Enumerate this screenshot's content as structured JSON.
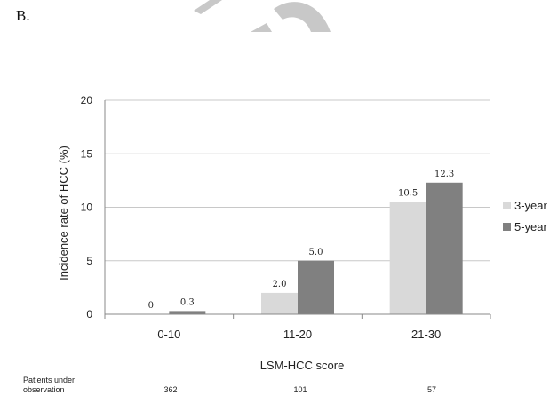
{
  "panel_label": "B.",
  "chart_data": {
    "type": "bar",
    "categories": [
      "0-10",
      "11-20",
      "21-30"
    ],
    "series": [
      {
        "name": "3-year",
        "values": [
          0,
          2.0,
          10.5
        ],
        "labels": [
          "0",
          "2.0",
          "10.5"
        ],
        "color": "#d9d9d9"
      },
      {
        "name": "5-year",
        "values": [
          0.3,
          5.0,
          12.3
        ],
        "labels": [
          "0.3",
          "5.0",
          "12.3"
        ],
        "color": "#808080"
      }
    ],
    "xlabel": "LSM-HCC score",
    "ylabel": "Incidence rate of HCC (%)",
    "ylim": [
      0,
      20
    ],
    "yticks": [
      "0",
      "5",
      "10",
      "15",
      "20"
    ],
    "grid": true,
    "legend_position": "right"
  },
  "observation": {
    "caption_line1": "Patients under",
    "caption_line2": "observation",
    "values": [
      "362",
      "101",
      "57"
    ]
  }
}
